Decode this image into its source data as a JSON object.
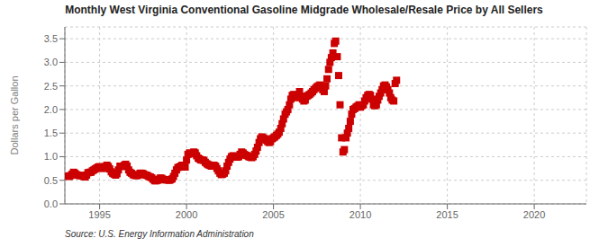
{
  "chart_data": {
    "type": "scatter",
    "title": "Monthly West Virginia Conventional Gasoline Midgrade Wholesale/Resale Price by All Sellers",
    "ylabel": "Dollars per Gallon",
    "annotations": [
      "Source: U.S. Energy Information Administration"
    ],
    "color": "#CC0000",
    "marker": "square",
    "grid": true,
    "xlim": [
      1993.0,
      2023.0
    ],
    "xticks": [
      1995,
      2000,
      2005,
      2010,
      2015,
      2020
    ],
    "ylim": [
      0.0,
      3.75
    ],
    "yticks": [
      {
        "value": 0.0,
        "label": "0.0"
      },
      0.5,
      {
        "value": 1.0,
        "label": "1.0"
      },
      1.5,
      {
        "value": 2.0,
        "label": "2.0"
      },
      2.5,
      {
        "value": 3.0,
        "label": "3.0"
      },
      3.5
    ],
    "x": [
      1993.17,
      1993.25,
      1993.33,
      1993.42,
      1993.5,
      1993.58,
      1993.67,
      1993.75,
      1993.83,
      1993.92,
      1994.0,
      1994.08,
      1994.17,
      1994.25,
      1994.33,
      1994.42,
      1994.5,
      1994.58,
      1994.67,
      1994.75,
      1994.83,
      1994.92,
      1995.0,
      1995.08,
      1995.17,
      1995.25,
      1995.33,
      1995.42,
      1995.5,
      1995.58,
      1995.67,
      1995.75,
      1995.83,
      1995.92,
      1996.0,
      1996.08,
      1996.17,
      1996.25,
      1996.33,
      1996.42,
      1996.5,
      1996.58,
      1996.67,
      1996.75,
      1996.83,
      1996.92,
      1997.0,
      1997.08,
      1997.17,
      1997.25,
      1997.33,
      1997.42,
      1997.5,
      1997.58,
      1997.67,
      1997.75,
      1997.83,
      1997.92,
      1998.0,
      1998.08,
      1998.17,
      1998.25,
      1998.33,
      1998.42,
      1998.5,
      1998.58,
      1998.67,
      1998.75,
      1998.83,
      1998.92,
      1999.0,
      1999.08,
      1999.17,
      1999.25,
      1999.33,
      1999.42,
      1999.5,
      1999.58,
      1999.67,
      1999.75,
      1999.83,
      1999.92,
      2000.0,
      2000.08,
      2000.17,
      2000.25,
      2000.33,
      2000.42,
      2000.5,
      2000.58,
      2000.67,
      2000.75,
      2000.83,
      2000.92,
      2001.0,
      2001.08,
      2001.17,
      2001.25,
      2001.33,
      2001.42,
      2001.5,
      2001.58,
      2001.67,
      2001.75,
      2001.83,
      2001.92,
      2002.0,
      2002.08,
      2002.17,
      2002.25,
      2002.33,
      2002.42,
      2002.5,
      2002.58,
      2002.67,
      2002.75,
      2002.83,
      2002.92,
      2003.0,
      2003.08,
      2003.17,
      2003.25,
      2003.33,
      2003.42,
      2003.5,
      2003.58,
      2003.67,
      2003.75,
      2003.83,
      2003.92,
      2004.0,
      2004.08,
      2004.17,
      2004.25,
      2004.33,
      2004.42,
      2004.5,
      2004.58,
      2004.67,
      2004.75,
      2004.83,
      2004.92,
      2005.0,
      2005.08,
      2005.17,
      2005.25,
      2005.33,
      2005.42,
      2005.5,
      2005.58,
      2005.67,
      2005.75,
      2005.83,
      2005.92,
      2006.0,
      2006.08,
      2006.17,
      2006.25,
      2006.33,
      2006.42,
      2006.5,
      2006.58,
      2006.67,
      2006.75,
      2006.83,
      2006.92,
      2007.0,
      2007.08,
      2007.17,
      2007.25,
      2007.33,
      2007.42,
      2007.5,
      2007.58,
      2007.67,
      2007.75,
      2007.83,
      2007.92,
      2008.0,
      2008.08,
      2008.17,
      2008.25,
      2008.33,
      2008.42,
      2008.5,
      2008.58,
      2008.67,
      2008.75,
      2008.83,
      2008.92,
      2009.0,
      2009.08,
      2009.17,
      2009.25,
      2009.33,
      2009.42,
      2009.5,
      2009.58,
      2009.67,
      2009.75,
      2009.83,
      2009.92,
      2010.0,
      2010.08,
      2010.17,
      2010.25,
      2010.33,
      2010.42,
      2010.5,
      2010.58,
      2010.67,
      2010.75,
      2010.83,
      2010.92,
      2011.0,
      2011.08,
      2011.17,
      2011.25,
      2011.33,
      2011.42,
      2011.5,
      2011.58,
      2011.67,
      2011.75,
      2011.83,
      2011.92,
      2012.0,
      2012.08
    ],
    "values": [
      0.59,
      0.58,
      0.6,
      0.63,
      0.67,
      0.65,
      0.62,
      0.61,
      0.6,
      0.6,
      0.6,
      0.58,
      0.57,
      0.61,
      0.66,
      0.67,
      0.67,
      0.7,
      0.72,
      0.74,
      0.76,
      0.78,
      0.79,
      0.77,
      0.75,
      0.76,
      0.79,
      0.82,
      0.79,
      0.74,
      0.68,
      0.65,
      0.63,
      0.61,
      0.64,
      0.72,
      0.8,
      0.79,
      0.8,
      0.82,
      0.84,
      0.8,
      0.72,
      0.67,
      0.65,
      0.62,
      0.61,
      0.6,
      0.6,
      0.62,
      0.65,
      0.65,
      0.64,
      0.62,
      0.61,
      0.6,
      0.58,
      0.57,
      0.55,
      0.52,
      0.49,
      0.49,
      0.5,
      0.52,
      0.55,
      0.54,
      0.52,
      0.51,
      0.51,
      0.51,
      0.5,
      0.51,
      0.53,
      0.58,
      0.65,
      0.72,
      0.77,
      0.78,
      0.8,
      0.82,
      0.8,
      0.78,
      0.93,
      1.05,
      1.08,
      1.07,
      1.06,
      1.1,
      1.08,
      1.02,
      0.97,
      0.95,
      0.93,
      0.93,
      0.92,
      0.88,
      0.85,
      0.83,
      0.82,
      0.8,
      0.8,
      0.82,
      0.8,
      0.75,
      0.7,
      0.65,
      0.62,
      0.63,
      0.65,
      0.7,
      0.8,
      0.88,
      0.95,
      1.0,
      1.02,
      1.01,
      1.0,
      0.99,
      1.0,
      1.05,
      1.1,
      1.08,
      1.05,
      1.03,
      1.02,
      1.0,
      0.99,
      0.98,
      1.0,
      1.05,
      1.12,
      1.2,
      1.3,
      1.38,
      1.42,
      1.4,
      1.38,
      1.35,
      1.32,
      1.3,
      1.32,
      1.38,
      1.4,
      1.42,
      1.45,
      1.48,
      1.52,
      1.6,
      1.7,
      1.8,
      1.9,
      1.95,
      2.0,
      2.1,
      2.22,
      2.3,
      2.32,
      2.28,
      2.25,
      2.3,
      2.38,
      2.28,
      2.22,
      2.18,
      2.2,
      2.28,
      2.3,
      2.32,
      2.35,
      2.38,
      2.42,
      2.45,
      2.48,
      2.5,
      2.52,
      2.48,
      2.42,
      2.38,
      2.5,
      2.65,
      2.85,
      3.0,
      3.1,
      3.2,
      3.4,
      3.45,
      3.12,
      2.72,
      2.1,
      1.4,
      1.1,
      1.15,
      1.4,
      1.5,
      1.6,
      1.75,
      1.9,
      2.0,
      2.02,
      2.05,
      2.07,
      2.1,
      2.05,
      2.08,
      2.1,
      2.18,
      2.25,
      2.3,
      2.32,
      2.3,
      2.22,
      2.1,
      2.08,
      2.1,
      2.2,
      2.28,
      2.35,
      2.42,
      2.5,
      2.52,
      2.48,
      2.42,
      2.35,
      2.25,
      2.2,
      2.18,
      2.55,
      2.62
    ]
  }
}
